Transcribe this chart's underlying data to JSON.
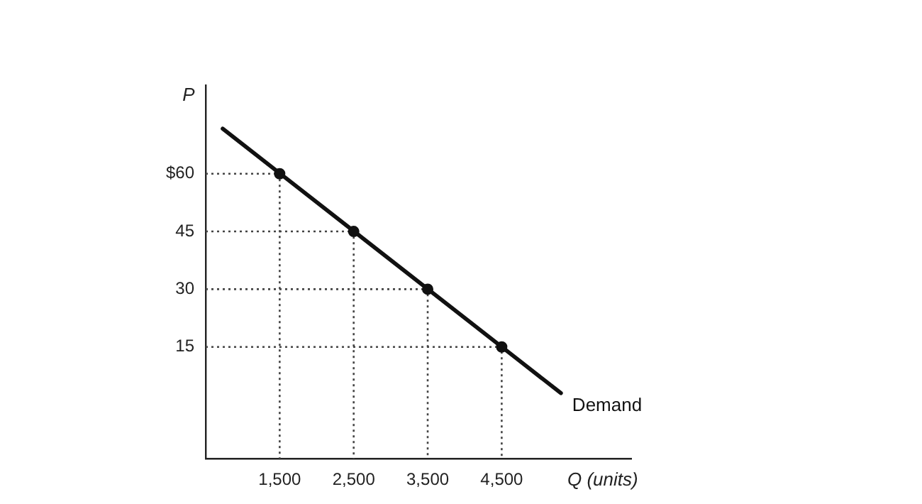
{
  "chart_data": {
    "type": "line",
    "xlabel": "Q (units)",
    "ylabel": "P",
    "xlim": [
      500,
      6250
    ],
    "ylim": [
      -14,
      83
    ],
    "xticks": [
      {
        "value": 1500,
        "label": "1,500"
      },
      {
        "value": 2500,
        "label": "2,500"
      },
      {
        "value": 3500,
        "label": "3,500"
      },
      {
        "value": 4500,
        "label": "4,500"
      }
    ],
    "yticks": [
      15,
      30,
      45,
      {
        "value": 60,
        "label": "$60"
      }
    ],
    "grid": false,
    "legend": false,
    "series": [
      {
        "name": "Demand",
        "color": "#111111",
        "marker": "none",
        "line_style": "solid",
        "x": [
          730,
          5300
        ],
        "values": [
          71.7,
          3
        ]
      },
      {
        "type": "scatter",
        "color": "#111111",
        "marker": "circle",
        "x": [
          1500,
          2500,
          3500,
          4500
        ],
        "values": [
          60,
          45,
          30,
          15
        ]
      },
      {
        "color": "#444444",
        "marker": "none",
        "line_style": "dotted",
        "x": [
          500,
          1500,
          1500
        ],
        "values": [
          60,
          60,
          -14
        ]
      },
      {
        "color": "#444444",
        "marker": "none",
        "line_style": "dotted",
        "x": [
          500,
          2500,
          2500
        ],
        "values": [
          45,
          45,
          -14
        ]
      },
      {
        "color": "#444444",
        "marker": "none",
        "line_style": "dotted",
        "x": [
          500,
          3500,
          3500
        ],
        "values": [
          30,
          30,
          -14
        ]
      },
      {
        "color": "#444444",
        "marker": "none",
        "line_style": "dotted",
        "x": [
          500,
          4500,
          4500
        ],
        "values": [
          15,
          15,
          -14
        ]
      }
    ]
  }
}
